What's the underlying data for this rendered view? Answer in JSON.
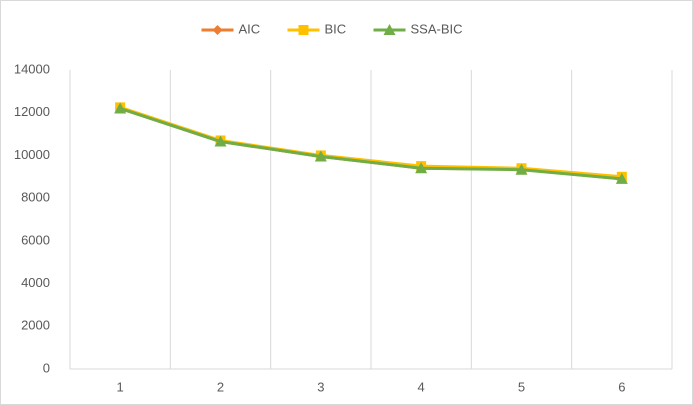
{
  "chart_data": {
    "type": "line",
    "categories": [
      "1",
      "2",
      "3",
      "4",
      "5",
      "6"
    ],
    "series": [
      {
        "name": "AIC",
        "color": "#ed7d31",
        "marker": "diamond",
        "values": [
          12200,
          10650,
          9950,
          9400,
          9350,
          8900
        ]
      },
      {
        "name": "BIC",
        "color": "#ffc000",
        "marker": "square",
        "values": [
          12250,
          10700,
          10000,
          9500,
          9400,
          9000
        ]
      },
      {
        "name": "SSA-BIC",
        "color": "#70ad47",
        "marker": "triangle",
        "values": [
          12200,
          10650,
          9950,
          9400,
          9330,
          8900
        ]
      }
    ],
    "ylim": [
      0,
      14000
    ],
    "yticks": [
      0,
      2000,
      4000,
      6000,
      8000,
      10000,
      12000,
      14000
    ],
    "grid": "vertical",
    "legend": "top"
  }
}
